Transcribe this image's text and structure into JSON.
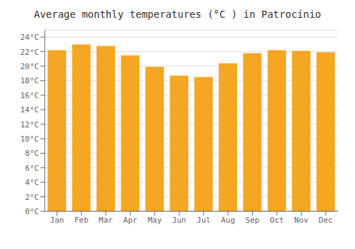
{
  "chart_data": {
    "type": "bar",
    "title": "Average monthly temperatures (°C ) in Patrocínio",
    "categories": [
      "Jan",
      "Feb",
      "Mar",
      "Apr",
      "May",
      "Jun",
      "Jul",
      "Aug",
      "Sep",
      "Oct",
      "Nov",
      "Dec"
    ],
    "values": [
      22.2,
      23.0,
      22.8,
      21.5,
      19.9,
      18.7,
      18.5,
      20.4,
      21.8,
      22.2,
      22.1,
      21.9
    ],
    "color": "#F5A623",
    "ylim": [
      0,
      25
    ],
    "yticks": [
      {
        "value": 0,
        "label": "0°C"
      },
      {
        "value": 2,
        "label": "2°C"
      },
      {
        "value": 4,
        "label": "4°C"
      },
      {
        "value": 6,
        "label": "6°C"
      },
      {
        "value": 8,
        "label": "8°C"
      },
      {
        "value": 10,
        "label": "10°C"
      },
      {
        "value": 12,
        "label": "12°C"
      },
      {
        "value": 14,
        "label": "14°C"
      },
      {
        "value": 16,
        "label": "16°C"
      },
      {
        "value": 18,
        "label": "18°C"
      },
      {
        "value": 20,
        "label": "20°C"
      },
      {
        "value": 22,
        "label": "22°C"
      },
      {
        "value": 24,
        "label": "24°C"
      }
    ],
    "grid": true
  }
}
